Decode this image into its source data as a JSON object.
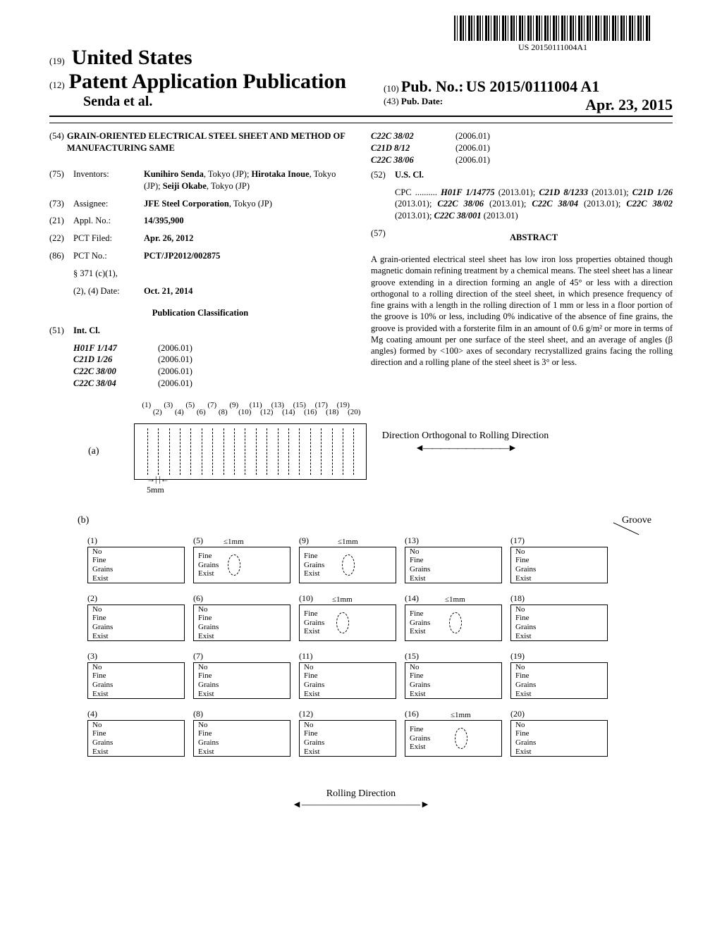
{
  "barcode_label": "US 20150111004A1",
  "header": {
    "num19": "(19)",
    "country": "United States",
    "num12": "(12)",
    "pub_kind": "Patent Application Publication",
    "authors": "Senda et al.",
    "num10": "(10)",
    "pubno_label": "Pub. No.:",
    "pubno": "US 2015/0111004 A1",
    "num43": "(43)",
    "pubdate_label": "Pub. Date:",
    "pubdate": "Apr. 23, 2015"
  },
  "left": {
    "f54": "(54)",
    "title": "GRAIN-ORIENTED ELECTRICAL STEEL SHEET AND METHOD OF MANUFACTURING SAME",
    "f75": "(75)",
    "inventors_label": "Inventors:",
    "inventors": "Kunihiro Senda, Tokyo (JP); Hirotaka Inoue, Tokyo (JP); Seiji Okabe, Tokyo (JP)",
    "f73": "(73)",
    "assignee_label": "Assignee:",
    "assignee": "JFE Steel Corporation, Tokyo (JP)",
    "f21": "(21)",
    "appl_label": "Appl. No.:",
    "appl": "14/395,900",
    "f22": "(22)",
    "pctfiled_label": "PCT Filed:",
    "pctfiled": "Apr. 26, 2012",
    "f86": "(86)",
    "pctno_label": "PCT No.:",
    "pctno": "PCT/JP2012/002875",
    "s371": "§ 371 (c)(1),",
    "s371b": "(2), (4) Date:",
    "s371date": "Oct. 21, 2014",
    "pubclass": "Publication Classification",
    "f51": "(51)",
    "intcl": "Int. Cl.",
    "intcl_rows": [
      {
        "code": "H01F 1/147",
        "ver": "(2006.01)"
      },
      {
        "code": "C21D 1/26",
        "ver": "(2006.01)"
      },
      {
        "code": "C22C 38/00",
        "ver": "(2006.01)"
      },
      {
        "code": "C22C 38/04",
        "ver": "(2006.01)"
      }
    ]
  },
  "right": {
    "intcl_rows": [
      {
        "code": "C22C 38/02",
        "ver": "(2006.01)"
      },
      {
        "code": "C21D 8/12",
        "ver": "(2006.01)"
      },
      {
        "code": "C22C 38/06",
        "ver": "(2006.01)"
      }
    ],
    "f52": "(52)",
    "uscl": "U.S. Cl.",
    "cpc": "CPC .......... H01F 1/14775 (2013.01); C21D 8/1233 (2013.01); C21D 1/26 (2013.01); C22C 38/06 (2013.01); C22C 38/04 (2013.01); C22C 38/02 (2013.01); C22C 38/001 (2013.01)",
    "f57": "(57)",
    "abstract_head": "ABSTRACT",
    "abstract": "A grain-oriented electrical steel sheet has low iron loss properties obtained though magnetic domain refining treatment by a chemical means. The steel sheet has a linear groove extending in a direction forming an angle of 45° or less with a direction orthogonal to a rolling direction of the steel sheet, in which presence frequency of fine grains with a length in the rolling direction of 1 mm or less in a floor portion of the groove is 10% or less, including 0% indicative of the absence of fine grains, the groove is provided with a forsterite film in an amount of 0.6 g/m² or more in terms of Mg coating amount per one surface of the steel sheet, and an average of angles (β angles) formed by <100> axes of secondary recrystallized grains facing the rolling direction and a rolling plane of the steel sheet is 3° or less."
  },
  "figure": {
    "a_label": "(a)",
    "b_label": "(b)",
    "dir_label": "Direction Orthogonal to Rolling Direction",
    "five_mm": "5mm",
    "groove": "Groove",
    "rolling": "Rolling Direction",
    "one_mm": "≤1mm",
    "no_fine": "No Fine Grains Exist",
    "fine": "Fine Grains Exist",
    "line_count": 20,
    "cells": [
      [
        {
          "n": "(1)",
          "fine": false
        },
        {
          "n": "(5)",
          "fine": true,
          "mm": true,
          "ovx": 48
        },
        {
          "n": "(9)",
          "fine": true,
          "mm": true,
          "ovx": 60
        },
        {
          "n": "(13)",
          "fine": false
        },
        {
          "n": "(17)",
          "fine": false
        }
      ],
      [
        {
          "n": "(2)",
          "fine": false
        },
        {
          "n": "(6)",
          "fine": false
        },
        {
          "n": "(10)",
          "fine": true,
          "mm": true,
          "ovx": 52
        },
        {
          "n": "(14)",
          "fine": true,
          "mm": true,
          "ovx": 62
        },
        {
          "n": "(18)",
          "fine": false
        }
      ],
      [
        {
          "n": "(3)",
          "fine": false
        },
        {
          "n": "(7)",
          "fine": false
        },
        {
          "n": "(11)",
          "fine": false
        },
        {
          "n": "(15)",
          "fine": false
        },
        {
          "n": "(19)",
          "fine": false
        }
      ],
      [
        {
          "n": "(4)",
          "fine": false
        },
        {
          "n": "(8)",
          "fine": false
        },
        {
          "n": "(12)",
          "fine": false
        },
        {
          "n": "(16)",
          "fine": true,
          "mm": true,
          "ovx": 70
        },
        {
          "n": "(20)",
          "fine": false
        }
      ]
    ],
    "colors": {
      "line": "#000000",
      "bg": "#ffffff"
    }
  }
}
